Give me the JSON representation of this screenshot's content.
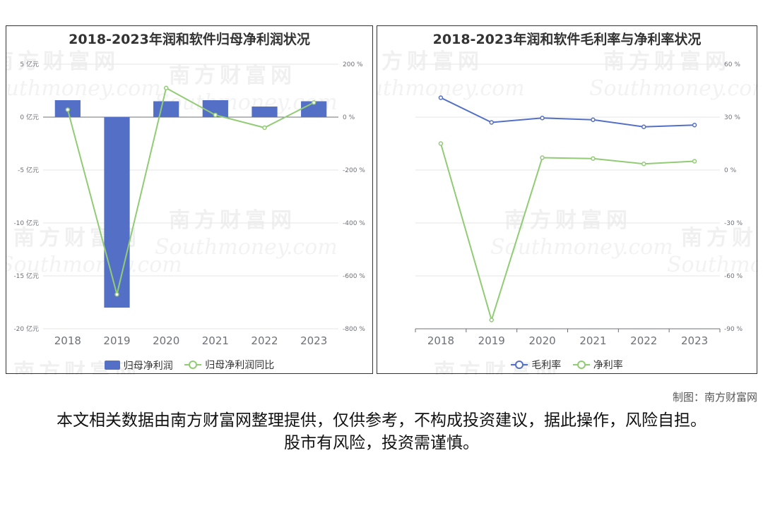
{
  "credit": "制图：南方财富网",
  "disclaimer": "本文相关数据由南方财富网整理提供，仅供参考，不构成投资建议，据此操作，风险自担。股市有风险，投资需谨慎。",
  "watermark": {
    "cn": "南方财富网",
    "en": "Southmoney.com"
  },
  "chart_data": [
    {
      "type": "bar",
      "title": "2018-2023年润和软件归母净利润状况",
      "categories": [
        "2018",
        "2019",
        "2020",
        "2021",
        "2022",
        "2023"
      ],
      "left_axis": {
        "ylim": [
          -20,
          5
        ],
        "ticks": [
          "5 亿元",
          "0 亿元",
          "-5 亿元",
          "-10 亿元",
          "-15 亿元",
          "-20 亿元"
        ],
        "tick_values": [
          5,
          0,
          -5,
          -10,
          -15,
          -20
        ]
      },
      "right_axis": {
        "ylim": [
          -800,
          200
        ],
        "ticks": [
          "200 %",
          "0 %",
          "-200 %",
          "-400 %",
          "-600 %",
          "-800 %"
        ],
        "tick_values": [
          200,
          0,
          -200,
          -400,
          -600,
          -800
        ]
      },
      "series": [
        {
          "name": "归母净利润",
          "type": "bar",
          "axis": "left",
          "color": "#5470c6",
          "values": [
            1.6,
            -18.0,
            1.5,
            1.6,
            1.0,
            1.5
          ]
        },
        {
          "name": "归母净利润同比",
          "type": "line",
          "axis": "right",
          "color": "#91cc75",
          "values": [
            28,
            -670,
            110,
            8,
            -40,
            55
          ]
        }
      ],
      "grid": true,
      "legend_position": "bottom"
    },
    {
      "type": "line",
      "title": "2018-2023年润和软件毛利率与净利率状况",
      "categories": [
        "2018",
        "2019",
        "2020",
        "2021",
        "2022",
        "2023"
      ],
      "right_axis": {
        "ylim": [
          -90,
          60
        ],
        "ticks": [
          "60 %",
          "30 %",
          "0 %",
          "-30 %",
          "-60 %",
          "-90 %"
        ],
        "tick_values": [
          60,
          30,
          0,
          -30,
          -60,
          -90
        ]
      },
      "series": [
        {
          "name": "毛利率",
          "type": "line",
          "axis": "right",
          "color": "#5470c6",
          "values": [
            41,
            27,
            29.5,
            28.5,
            24.5,
            25.5
          ]
        },
        {
          "name": "净利率",
          "type": "line",
          "axis": "right",
          "color": "#91cc75",
          "values": [
            15,
            -85,
            7,
            6.5,
            3.5,
            5
          ]
        }
      ],
      "grid": true,
      "legend_position": "bottom"
    }
  ]
}
